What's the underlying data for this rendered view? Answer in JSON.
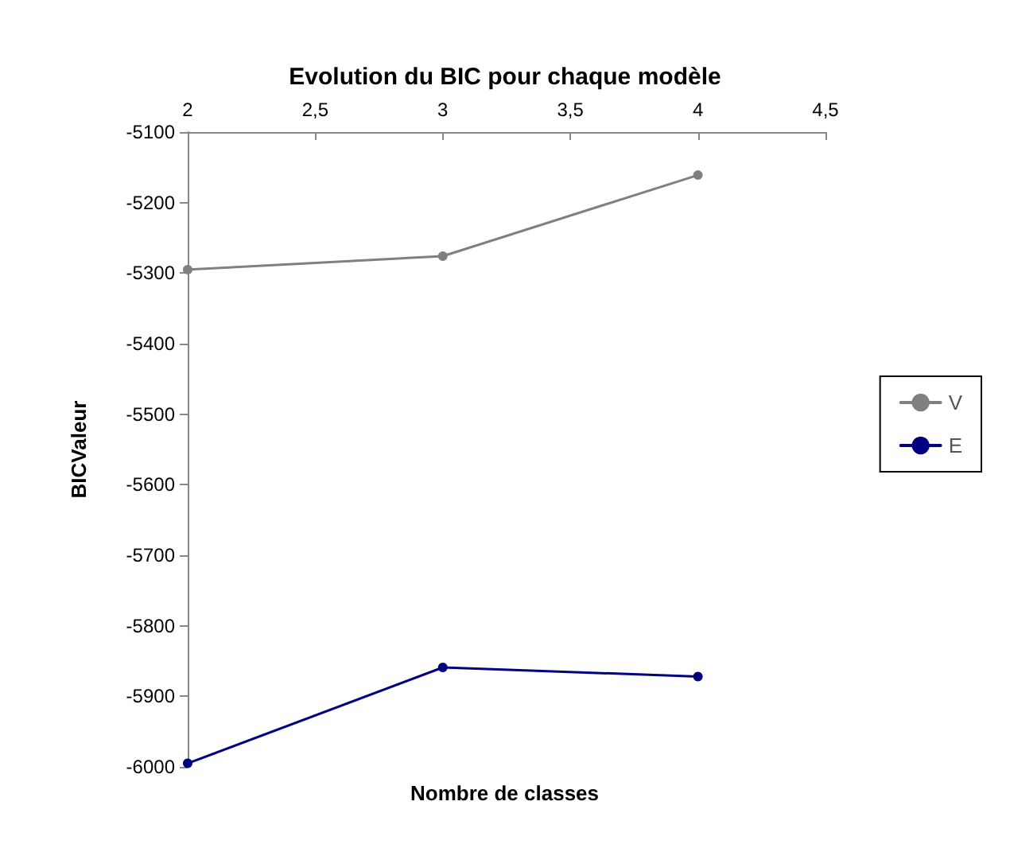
{
  "chart_data": {
    "type": "line",
    "title": "Evolution du BIC pour chaque modèle",
    "xlabel": "Nombre de classes",
    "ylabel": "BICValeur",
    "x": [
      2,
      3,
      4
    ],
    "series": [
      {
        "name": "V",
        "color": "#808080",
        "values": [
          -5295,
          -5276,
          -5161
        ]
      },
      {
        "name": "E",
        "color": "#000080",
        "values": [
          -5995,
          -5859,
          -5872
        ]
      }
    ],
    "xlim": [
      2,
      4.5
    ],
    "xticks": [
      2,
      {
        "value": 2.5,
        "label": "2,5"
      },
      3,
      {
        "value": 3.5,
        "label": "3,5"
      },
      4,
      {
        "value": 4.5,
        "label": "4,5"
      }
    ],
    "ylim": [
      -6000,
      -5100
    ],
    "yticks": [
      -6000,
      -5900,
      -5800,
      -5700,
      -5600,
      -5500,
      -5400,
      -5300,
      -5200,
      -5100
    ],
    "grid": false,
    "legend": "right",
    "marker": "circle",
    "line_style": "solid"
  }
}
